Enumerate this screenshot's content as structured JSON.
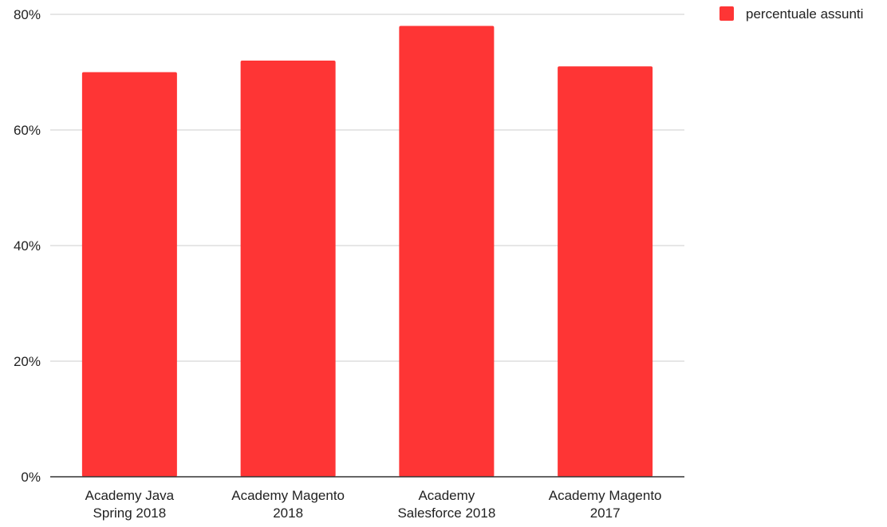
{
  "colors": {
    "bar": "#fe3535",
    "grid": "#cccccc",
    "axis": "#333333",
    "text": "#222222"
  },
  "chart_data": {
    "type": "bar",
    "categories": [
      [
        "Academy Java",
        "Spring 2018"
      ],
      [
        "Academy Magento",
        "2018"
      ],
      [
        "Academy",
        "Salesforce 2018"
      ],
      [
        "Academy Magento",
        "2017"
      ]
    ],
    "series": [
      {
        "name": "percentuale assunti",
        "values": [
          70,
          72,
          78,
          71
        ]
      }
    ],
    "ylim": [
      0,
      80
    ],
    "yticks": [
      "0%",
      "20%",
      "40%",
      "60%",
      "80%"
    ],
    "ytick_values": [
      0,
      20,
      40,
      60,
      80
    ],
    "grid": true,
    "legend_position": "top-right",
    "title": "",
    "xlabel": "",
    "ylabel": ""
  }
}
